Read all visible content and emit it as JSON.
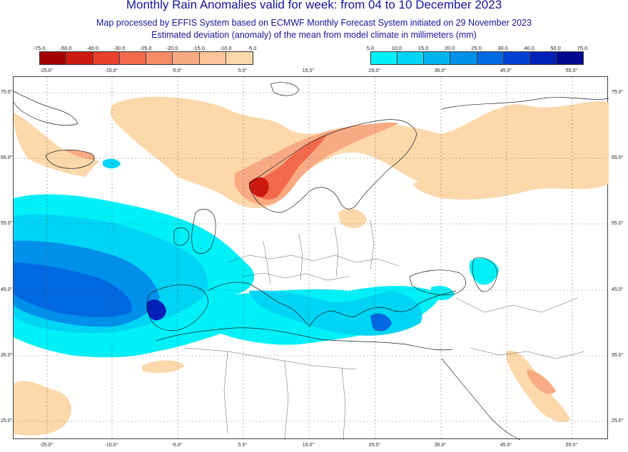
{
  "header": {
    "title": "Monthly Rain Anomalies valid for week: from 04 to 10 December 2023",
    "subtitle1": "Map processed by EFFIS System based on ECMWF Monthly Forecast System initiated on 29 November 2023",
    "subtitle2": "Estimated deviation (anomaly) of the mean from model climate in millimeters (mm)"
  },
  "legend_dry": {
    "ticks": [
      "-75.0",
      "-50.0",
      "-40.0",
      "-30.0",
      "-25.0",
      "-20.0",
      "-15.0",
      "-10.0",
      "-5.0"
    ],
    "colors": [
      "#a50000",
      "#cc1a10",
      "#e8402c",
      "#f26a4c",
      "#f68c66",
      "#f9aa82",
      "#fbc49a",
      "#fcd8ab"
    ]
  },
  "legend_wet": {
    "ticks": [
      "5.0",
      "10.0",
      "15.0",
      "20.0",
      "25.0",
      "30.0",
      "40.0",
      "50.0",
      "75.0"
    ],
    "colors": [
      "#00f0f8",
      "#00d4f4",
      "#00b4f0",
      "#0090ea",
      "#0068e0",
      "#0040d0",
      "#0020b8",
      "#000890"
    ]
  },
  "axes": {
    "lon_labels": [
      "-25.0°",
      "-15.0°",
      "-5.0°",
      "5.0°",
      "15.0°",
      "25.0°",
      "35.0°",
      "45.0°",
      "55.0°"
    ],
    "lat_labels": [
      "75.0°",
      "65.0°",
      "55.0°",
      "45.0°",
      "35.0°",
      "25.0°"
    ]
  }
}
